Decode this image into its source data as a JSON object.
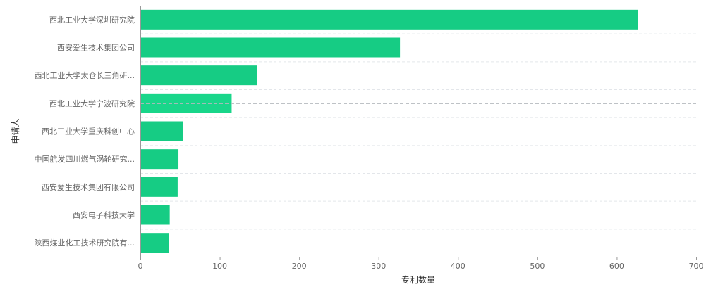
{
  "chart_data": {
    "type": "bar",
    "orientation": "horizontal",
    "categories": [
      "西北工业大学深圳研究院",
      "西安爱生技术集团公司",
      "西北工业大学太仓长三角研...",
      "西北工业大学宁波研究院",
      "西北工业大学重庆科创中心",
      "中国航发四川燃气涡轮研究...",
      "西安爱生技术集团有限公司",
      "西安电子科技大学",
      "陕西煤业化工技术研究院有..."
    ],
    "values": [
      627,
      327,
      147,
      115,
      54,
      48,
      47,
      37,
      36
    ],
    "xlabel": "专利数量",
    "ylabel": "申请人",
    "xlim": [
      0,
      700
    ],
    "xticks": [
      "0",
      "100",
      "200",
      "300",
      "400",
      "500",
      "600",
      "700"
    ],
    "bar_color": "#16cc84",
    "highlight_color": "#19d68a",
    "highlight_index": 3,
    "grid": "horizontal-dashed"
  }
}
